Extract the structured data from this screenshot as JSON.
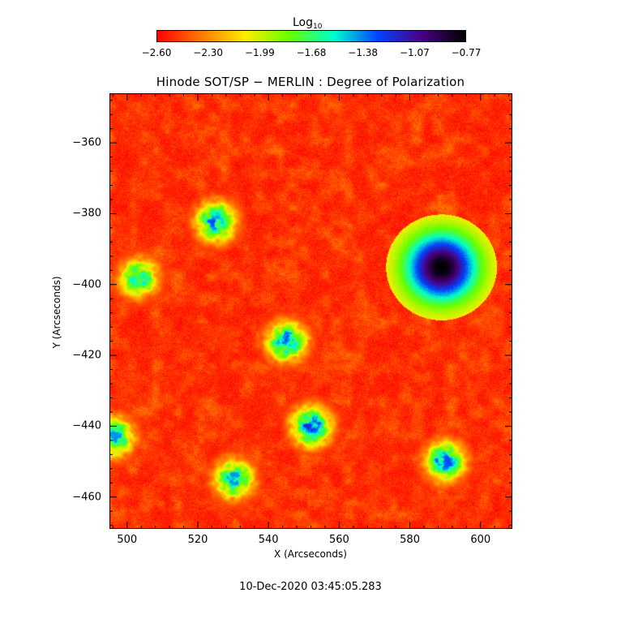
{
  "colorbar": {
    "label": "Log",
    "label_sub": "10",
    "ticks": [
      "−2.60",
      "−2.30",
      "−1.99",
      "−1.68",
      "−1.38",
      "−1.07",
      "−0.77"
    ],
    "colormap": [
      "#ff0000",
      "#ff7a00",
      "#ffee00",
      "#66ff00",
      "#00ffcc",
      "#0044ff",
      "#4b0082",
      "#000000"
    ]
  },
  "chart_data": {
    "type": "heatmap",
    "title": "Hinode SOT/SP − MERLIN : Degree of Polarization",
    "xlabel": "X (Arcseconds)",
    "ylabel": "Y (Arcseconds)",
    "xlim": [
      495,
      609
    ],
    "ylim": [
      -469,
      -346
    ],
    "xticks": [
      500,
      520,
      540,
      560,
      580,
      600
    ],
    "xtick_labels": [
      "500",
      "520",
      "540",
      "560",
      "580",
      "600"
    ],
    "yticks": [
      -360,
      -380,
      -400,
      -420,
      -440,
      -460
    ],
    "ytick_labels": [
      "−360",
      "−380",
      "−400",
      "−420",
      "−440",
      "−460"
    ],
    "color_range_log10": [
      -2.6,
      -0.77
    ],
    "features": [
      {
        "kind": "sunspot",
        "x": 589,
        "y": -395,
        "value_log10": -0.85
      },
      {
        "kind": "network",
        "x": 525,
        "y": -382,
        "value_log10": -1.3
      },
      {
        "kind": "network",
        "x": 545,
        "y": -416,
        "value_log10": -1.3
      },
      {
        "kind": "network",
        "x": 552,
        "y": -440,
        "value_log10": -1.2
      },
      {
        "kind": "network",
        "x": 530,
        "y": -455,
        "value_log10": -1.4
      },
      {
        "kind": "network",
        "x": 590,
        "y": -450,
        "value_log10": -1.3
      },
      {
        "kind": "network",
        "x": 503,
        "y": -398,
        "value_log10": -1.5
      },
      {
        "kind": "network",
        "x": 496,
        "y": -443,
        "value_log10": -1.4
      }
    ]
  },
  "footer": {
    "timestamp": "10-Dec-2020 03:45:05.283"
  }
}
